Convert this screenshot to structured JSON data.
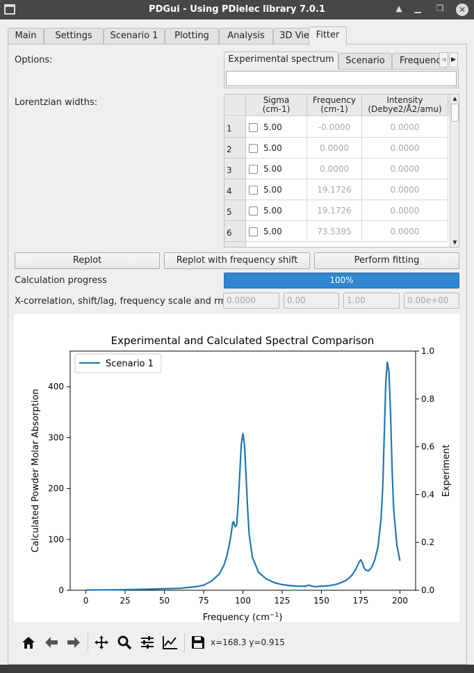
{
  "window": {
    "title": "PDGui - Using PDielec library 7.0.1",
    "controls": {
      "shade": "▲",
      "minimize": "▁",
      "maximize": "❐",
      "close": "✕"
    }
  },
  "tabs": [
    "Main",
    "Settings",
    "Scenario 1",
    "Plotting",
    "Analysis",
    "3D Viewer",
    "Fitter"
  ],
  "active_tab": "Fitter",
  "fitter": {
    "options_label": "Options:",
    "subtabs": [
      "Experimental spectrum",
      "Scenario",
      "Frequenc"
    ],
    "scroll_left": "◀",
    "scroll_right": "▶",
    "lorentzian_label": "Lorentzian widths:",
    "table": {
      "headers": [
        {
          "line1": "Sigma",
          "line2": "(cm-1)"
        },
        {
          "line1": "Frequency",
          "line2": "(cm-1)"
        },
        {
          "line1": "Intensity",
          "line2": "(Debye2/Å2/amu)"
        }
      ],
      "rows": [
        {
          "n": "1",
          "sigma": "5.00",
          "frequency": "-0.0000",
          "intensity": "0.0000"
        },
        {
          "n": "2",
          "sigma": "5.00",
          "frequency": "0.0000",
          "intensity": "0.0000"
        },
        {
          "n": "3",
          "sigma": "5.00",
          "frequency": "0.0000",
          "intensity": "0.0000"
        },
        {
          "n": "4",
          "sigma": "5.00",
          "frequency": "19.1726",
          "intensity": "0.0000"
        },
        {
          "n": "5",
          "sigma": "5.00",
          "frequency": "19.1726",
          "intensity": "0.0000"
        },
        {
          "n": "6",
          "sigma": "5.00",
          "frequency": "73.5395",
          "intensity": "0.0000"
        }
      ],
      "scroll_up": "▲",
      "scroll_down": "▼"
    },
    "buttons": {
      "replot": "Replot",
      "replot_shift": "Replot with frequency shift",
      "fit": "Perform fitting"
    },
    "progress_label": "Calculation progress",
    "progress_value": 1.0,
    "progress_text": "100%",
    "xcorr_label": "X-correlation, shift/lag, frequency scale and rmse",
    "xcorr_values": [
      "0.0000",
      "0.00",
      "1.00",
      "0.00e+00"
    ],
    "coords": "x=168.3 y=0.915"
  },
  "colors": {
    "accent": "#2f86d1",
    "series": "#1f77b4"
  },
  "toolbar_icons": [
    "home-icon",
    "back-arrow-icon",
    "forward-arrow-icon",
    "pan-icon",
    "zoom-icon",
    "subplots-config-icon",
    "edit-axis-icon",
    "save-icon"
  ],
  "chart_data": {
    "type": "line",
    "title": "Experimental and Calculated Spectral Comparison",
    "xlabel": "Frequency (cm⁻¹)",
    "xlabel_main": "Frequency (cm",
    "xlabel_sup": "−1",
    "xlabel_close": ")",
    "ylabel": "Calculated Powder Molar Absorption",
    "y2label": "Experiment",
    "xlim": [
      -10,
      210
    ],
    "ylim": [
      0,
      470
    ],
    "y2lim": [
      0,
      1
    ],
    "xticks": [
      0,
      25,
      50,
      75,
      100,
      125,
      150,
      175,
      200
    ],
    "yticks": [
      0,
      100,
      200,
      300,
      400
    ],
    "y2ticks": [
      0.0,
      0.2,
      0.4,
      0.6,
      0.8,
      1.0
    ],
    "y2ticklabels": [
      "0.0",
      "0.2",
      "0.4",
      "0.6",
      "0.8",
      "1.0"
    ],
    "legend": "top-left",
    "grid": false,
    "series": [
      {
        "name": "Scenario 1",
        "x": [
          0,
          20,
          40,
          60,
          70,
          75,
          80,
          85,
          88,
          90,
          92,
          93.5,
          94,
          95,
          96,
          97,
          98,
          99,
          100,
          101,
          102,
          103,
          104,
          106,
          110,
          115,
          120,
          125,
          130,
          135,
          140,
          142,
          144,
          146,
          150,
          155,
          160,
          165,
          168,
          170,
          172,
          174,
          175,
          176,
          177,
          178,
          180,
          182,
          184,
          186,
          188,
          189,
          190,
          191,
          192,
          193,
          194,
          195,
          196,
          198,
          200
        ],
        "y": [
          0.5,
          1,
          2,
          4,
          7,
          10,
          18,
          32,
          50,
          70,
          100,
          132,
          135,
          125,
          128,
          170,
          230,
          288,
          308,
          285,
          225,
          160,
          110,
          65,
          35,
          22,
          15,
          11,
          9,
          8,
          8,
          10,
          8,
          7,
          8,
          9,
          12,
          18,
          25,
          32,
          42,
          55,
          60,
          55,
          45,
          40,
          38,
          45,
          60,
          85,
          140,
          200,
          300,
          410,
          448,
          430,
          350,
          240,
          160,
          90,
          58
        ]
      }
    ]
  }
}
